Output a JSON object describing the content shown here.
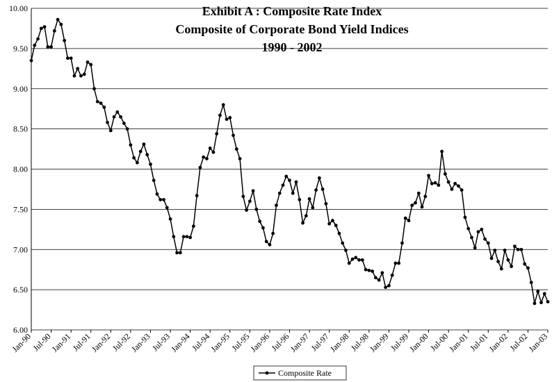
{
  "chart_data": {
    "type": "line",
    "title": [
      "Exhibit A : Composite Rate Index",
      "Composite of Corporate Bond Yield Indices",
      "1990 - 2002"
    ],
    "categories": [
      "Jan-90",
      null,
      null,
      null,
      null,
      null,
      "Jul-90",
      null,
      null,
      null,
      null,
      null,
      "Jan-91",
      null,
      null,
      null,
      null,
      null,
      "Jul-91",
      null,
      null,
      null,
      null,
      null,
      "Jan-92",
      null,
      null,
      null,
      null,
      null,
      "Jul-92",
      null,
      null,
      null,
      null,
      null,
      "Jan-93",
      null,
      null,
      null,
      null,
      null,
      "Jul-93",
      null,
      null,
      null,
      null,
      null,
      "Jan-94",
      null,
      null,
      null,
      null,
      null,
      "Jul-94",
      null,
      null,
      null,
      null,
      null,
      "Jan-95",
      null,
      null,
      null,
      null,
      null,
      "Jul-95",
      null,
      null,
      null,
      null,
      null,
      "Jan-96",
      null,
      null,
      null,
      null,
      null,
      "Jul-96",
      null,
      null,
      null,
      null,
      null,
      "Jan-97",
      null,
      null,
      null,
      null,
      null,
      "Jul-97",
      null,
      null,
      null,
      null,
      null,
      "Jan-98",
      null,
      null,
      null,
      null,
      null,
      "Jul-98",
      null,
      null,
      null,
      null,
      null,
      "Jan-99",
      null,
      null,
      null,
      null,
      null,
      "Jul-99",
      null,
      null,
      null,
      null,
      null,
      "Jan-00",
      null,
      null,
      null,
      null,
      null,
      "Jul-00",
      null,
      null,
      null,
      null,
      null,
      "Jan-01",
      null,
      null,
      null,
      null,
      null,
      "Jul-01",
      null,
      null,
      null,
      null,
      null,
      "Jan-02",
      null,
      null,
      null,
      null,
      null,
      "Jul-02",
      null,
      null,
      null,
      null,
      null,
      "Jan-03"
    ],
    "series": [
      {
        "name": "Composite Rate",
        "color": "#000000",
        "values": [
          9.35,
          9.54,
          9.62,
          9.75,
          9.77,
          9.52,
          9.52,
          9.72,
          9.86,
          9.8,
          9.6,
          9.38,
          9.38,
          9.16,
          9.25,
          9.16,
          9.18,
          9.33,
          9.3,
          9.0,
          8.84,
          8.82,
          8.77,
          8.58,
          8.48,
          8.65,
          8.71,
          8.65,
          8.57,
          8.5,
          8.3,
          8.14,
          8.08,
          8.22,
          8.31,
          8.18,
          8.06,
          7.86,
          7.69,
          7.62,
          7.62,
          7.52,
          7.38,
          7.16,
          6.96,
          6.96,
          7.16,
          7.16,
          7.15,
          7.29,
          7.67,
          8.02,
          8.15,
          8.13,
          8.26,
          8.21,
          8.44,
          8.67,
          8.8,
          8.62,
          8.64,
          8.42,
          8.25,
          8.13,
          7.66,
          7.49,
          7.6,
          7.73,
          7.5,
          7.35,
          7.27,
          7.1,
          7.06,
          7.2,
          7.55,
          7.7,
          7.8,
          7.91,
          7.86,
          7.7,
          7.84,
          7.62,
          7.33,
          7.42,
          7.63,
          7.52,
          7.74,
          7.89,
          7.75,
          7.57,
          7.32,
          7.36,
          7.3,
          7.2,
          7.08,
          6.99,
          6.83,
          6.88,
          6.9,
          6.87,
          6.87,
          6.75,
          6.74,
          6.73,
          6.65,
          6.62,
          6.71,
          6.53,
          6.55,
          6.68,
          6.83,
          6.83,
          7.08,
          7.39,
          7.36,
          7.55,
          7.58,
          7.7,
          7.53,
          7.66,
          7.92,
          7.82,
          7.83,
          7.8,
          8.22,
          7.94,
          7.84,
          7.75,
          7.82,
          7.79,
          7.74,
          7.4,
          7.26,
          7.15,
          7.02,
          7.22,
          7.25,
          7.13,
          7.08,
          6.89,
          6.99,
          6.85,
          6.76,
          6.99,
          6.87,
          6.79,
          7.04,
          7.0,
          7.0,
          6.82,
          6.77,
          6.59,
          6.33,
          6.48,
          6.34,
          6.45,
          6.35
        ]
      }
    ],
    "ylim": [
      6,
      10
    ],
    "yticks": [
      {
        "value": 6,
        "label": "6.00"
      },
      {
        "value": 6.5,
        "label": "6.50"
      },
      {
        "value": 7,
        "label": "7.00"
      },
      {
        "value": 7.5,
        "label": "7.50"
      },
      {
        "value": 8,
        "label": "8.00"
      },
      {
        "value": 8.5,
        "label": "8.50"
      },
      {
        "value": 9,
        "label": "9.00"
      },
      {
        "value": 9.5,
        "label": "9.50"
      },
      {
        "value": 10,
        "label": "10.00"
      }
    ],
    "grid": true,
    "legend": "bottom"
  }
}
